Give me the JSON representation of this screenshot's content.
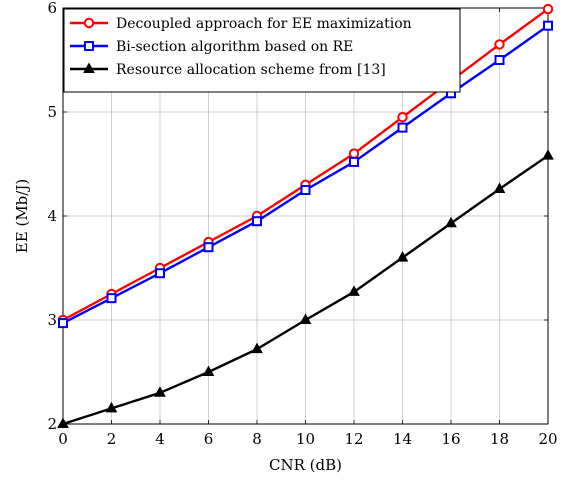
{
  "chart_data": {
    "type": "line",
    "xlabel": "CNR (dB)",
    "ylabel": "EE (Mb/J)",
    "xlim": [
      0,
      20
    ],
    "ylim": [
      2,
      6
    ],
    "xticks": [
      0,
      2,
      4,
      6,
      8,
      10,
      12,
      14,
      16,
      18,
      20
    ],
    "yticks": [
      2,
      3,
      4,
      5,
      6
    ],
    "grid": true,
    "legend_position": "top-left",
    "x": [
      0,
      2,
      4,
      6,
      8,
      10,
      12,
      14,
      16,
      18,
      20
    ],
    "series": [
      {
        "name": "Decoupled approach for EE maximization",
        "color": "#ff0000",
        "marker": "circle",
        "values": [
          3.0,
          3.25,
          3.5,
          3.75,
          4.0,
          4.3,
          4.6,
          4.95,
          5.3,
          5.65,
          5.99
        ]
      },
      {
        "name": "Bi-section algorithm based on RE",
        "color": "#0000ff",
        "marker": "square",
        "values": [
          2.97,
          3.21,
          3.45,
          3.7,
          3.95,
          4.25,
          4.52,
          4.85,
          5.18,
          5.5,
          5.83
        ]
      },
      {
        "name": "Resource allocation scheme from [13]",
        "color": "#000000",
        "marker": "triangle",
        "values": [
          2.0,
          2.15,
          2.3,
          2.5,
          2.72,
          3.0,
          3.27,
          3.6,
          3.93,
          4.26,
          4.58
        ]
      }
    ]
  }
}
